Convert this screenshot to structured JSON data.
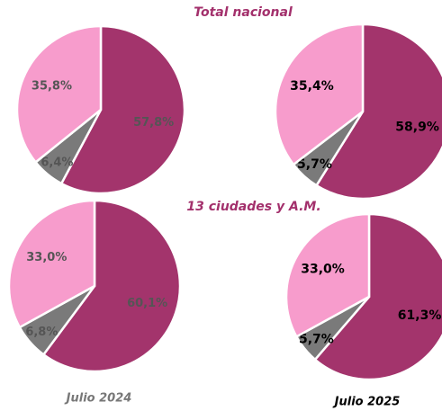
{
  "headings": [
    "Total nacional",
    "13 ciudades y A.M."
  ],
  "periods": [
    "Julio 2024",
    "Julio 2025"
  ],
  "chart_data": [
    {
      "type": "pie",
      "values": [
        57.8,
        6.4,
        35.8
      ],
      "value_labels": [
        "57,8%",
        "6,4%",
        "35,8%"
      ],
      "colors": [
        "#a3346c",
        "#7a7a7a",
        "#f79ccc"
      ]
    },
    {
      "type": "pie",
      "values": [
        58.9,
        5.7,
        35.4
      ],
      "value_labels": [
        "58,9%",
        "5,7%",
        "35,4%"
      ],
      "colors": [
        "#a3346c",
        "#7a7a7a",
        "#f79ccc"
      ]
    },
    {
      "type": "pie",
      "values": [
        60.1,
        6.8,
        33.0
      ],
      "value_labels": [
        "60,1%",
        "6,8%",
        "33,0%"
      ],
      "colors": [
        "#a3346c",
        "#7a7a7a",
        "#f79ccc"
      ]
    },
    {
      "type": "pie",
      "values": [
        61.3,
        5.7,
        33.0
      ],
      "value_labels": [
        "61,3%",
        "5,7%",
        "33,0%"
      ],
      "colors": [
        "#a3346c",
        "#7a7a7a",
        "#f79ccc"
      ]
    }
  ]
}
